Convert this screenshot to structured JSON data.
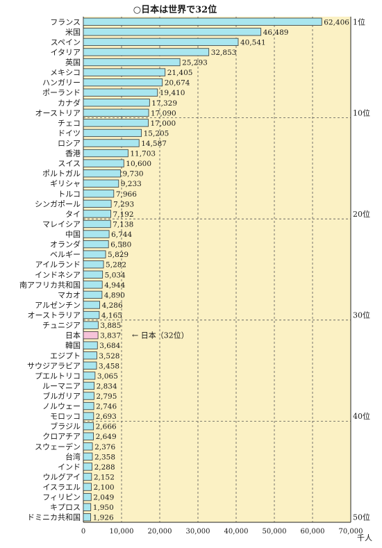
{
  "chart_data": {
    "type": "bar",
    "orientation": "horizontal",
    "title": "○日本は世界で32位",
    "xlabel": "千人",
    "xlim": [
      0,
      70000
    ],
    "x_ticks": [
      "0",
      "10,000",
      "20,000",
      "30,000",
      "40,000",
      "50,000",
      "60,000",
      "70,000"
    ],
    "grid": "dashed",
    "rank_labels": [
      "1位",
      "10位",
      "20位",
      "30位",
      "40位",
      "50位"
    ],
    "annotation": "← 日本（32位）",
    "highlight_color": "#f6c3d9",
    "bar_color": "#a9e6ef",
    "background_color": "#fbf1c4",
    "categories": [
      "フランス",
      "米国",
      "スペイン",
      "イタリア",
      "英国",
      "メキシコ",
      "ハンガリー",
      "ポーランド",
      "カナダ",
      "オーストリア",
      "チェコ",
      "ドイツ",
      "ロシア",
      "香港",
      "スイス",
      "ポルトガル",
      "ギリシャ",
      "トルコ",
      "シンガポール",
      "タイ",
      "マレイシア",
      "中国",
      "オランダ",
      "ベルギー",
      "アイルランド",
      "インドネシア",
      "南アフリカ共和国",
      "マカオ",
      "アルゼンチン",
      "オーストラリア",
      "チュニジア",
      "日本",
      "韓国",
      "エジプト",
      "サウジアラビア",
      "プエルトリコ",
      "ルーマニア",
      "ブルガリア",
      "ノルウェー",
      "モロッコ",
      "ブラジル",
      "クロアチア",
      "スウェーデン",
      "台湾",
      "インド",
      "ウルグアイ",
      "イスラエル",
      "フィリピン",
      "キプロス",
      "ドミニカ共和国"
    ],
    "values": [
      62406,
      46489,
      40541,
      32853,
      25293,
      21405,
      20674,
      19410,
      17329,
      17090,
      17000,
      15205,
      14587,
      11703,
      10600,
      9730,
      9233,
      7966,
      7293,
      7192,
      7138,
      6744,
      6580,
      5829,
      5282,
      5034,
      4944,
      4890,
      4286,
      4165,
      3885,
      3837,
      3684,
      3528,
      3458,
      3065,
      2834,
      2795,
      2746,
      2693,
      2666,
      2649,
      2376,
      2358,
      2288,
      2152,
      2100,
      2049,
      1950,
      1926
    ],
    "value_labels": [
      "62,406",
      "46,489",
      "40,541",
      "32,853",
      "25,293",
      "21,405",
      "20,674",
      "19,410",
      "17,329",
      "17,090",
      "17,000",
      "15,205",
      "14,587",
      "11,703",
      "10,600",
      "9,730",
      "9,233",
      "7,966",
      "7,293",
      "7,192",
      "7,138",
      "6,744",
      "6,580",
      "5,829",
      "5,282",
      "5,034",
      "4,944",
      "4,890",
      "4,286",
      "4,165",
      "3,885",
      "3,837",
      "3,684",
      "3,528",
      "3,458",
      "3,065",
      "2,834",
      "2,795",
      "2,746",
      "2,693",
      "2,666",
      "2,649",
      "2,376",
      "2,358",
      "2,288",
      "2,152",
      "2,100",
      "2,049",
      "1,950",
      "1,926"
    ],
    "highlight_index": 31
  }
}
